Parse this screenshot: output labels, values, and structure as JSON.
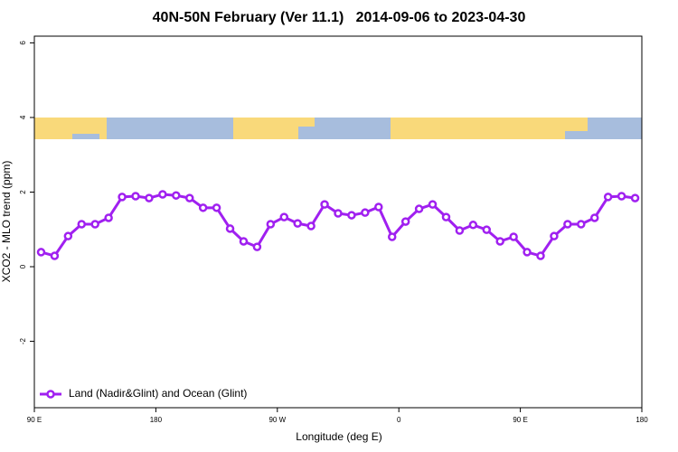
{
  "chart_data": {
    "type": "line",
    "title": "40N-50N February (Ver 11.1)   2014-09-06 to 2023-04-30",
    "x_label": "Longitude (deg E)",
    "y_label": "XCO2 - MLO trend (ppm)",
    "x": [
      95,
      105,
      115,
      125,
      135,
      145,
      155,
      165,
      175,
      185,
      195,
      205,
      215,
      225,
      235,
      245,
      255,
      265,
      275,
      285,
      295,
      305,
      315,
      325,
      335,
      345,
      355,
      365,
      375,
      385,
      395,
      405,
      415,
      425,
      435,
      445,
      455,
      465,
      475,
      485,
      495,
      505,
      515,
      525,
      535
    ],
    "series": [
      {
        "name": "Land (Nadir&Glint) and Ocean (Glint)",
        "color": "#a020f0",
        "values": [
          0.39,
          0.29,
          0.82,
          1.14,
          1.14,
          1.31,
          1.87,
          1.89,
          1.84,
          1.94,
          1.91,
          1.84,
          1.58,
          1.58,
          1.02,
          0.68,
          0.53,
          1.14,
          1.33,
          1.16,
          1.09,
          1.67,
          1.43,
          1.38,
          1.45,
          1.6,
          0.8,
          1.21,
          1.55,
          1.67,
          1.33,
          0.97,
          1.12,
          0.99,
          0.68,
          0.8,
          0.39,
          0.29,
          0.82,
          1.14,
          1.14,
          1.31,
          1.87,
          1.89,
          1.84
        ]
      }
    ],
    "xlim": [
      90,
      540
    ],
    "xticks": [
      {
        "value": 90,
        "label": "90 E"
      },
      {
        "value": 180,
        "label": "180"
      },
      {
        "value": 270,
        "label": "90 W"
      },
      {
        "value": 360,
        "label": "0"
      },
      {
        "value": 450,
        "label": "90 E"
      },
      {
        "value": 540,
        "label": "180"
      }
    ],
    "ylim": [
      -3.78,
      6.18
    ],
    "yticks": [
      -2,
      0,
      2,
      4,
      6
    ],
    "legend": "bottom-left"
  }
}
